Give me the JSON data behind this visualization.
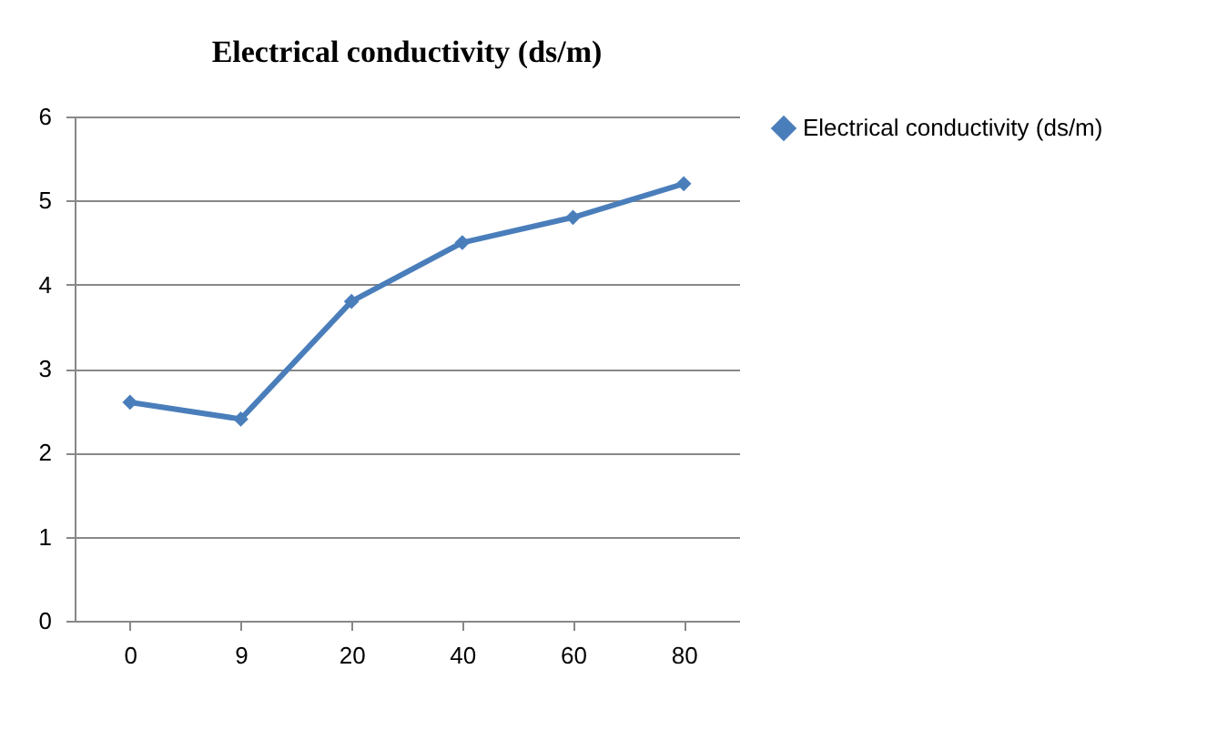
{
  "chart_data": {
    "type": "line",
    "title": "Electrical conductivity (ds/m)",
    "categories": [
      "0",
      "9",
      "20",
      "40",
      "60",
      "80"
    ],
    "series": [
      {
        "name": "Electrical conductivity (ds/m)",
        "color": "#4a7ebb",
        "values": [
          2.6,
          2.4,
          3.8,
          4.5,
          4.8,
          5.2
        ]
      }
    ],
    "ylim": [
      0,
      6
    ],
    "yticks": [
      0,
      1,
      2,
      3,
      4,
      5,
      6
    ],
    "grid": "y",
    "legend": "right",
    "marker": "diamond",
    "line_style": "solid"
  }
}
